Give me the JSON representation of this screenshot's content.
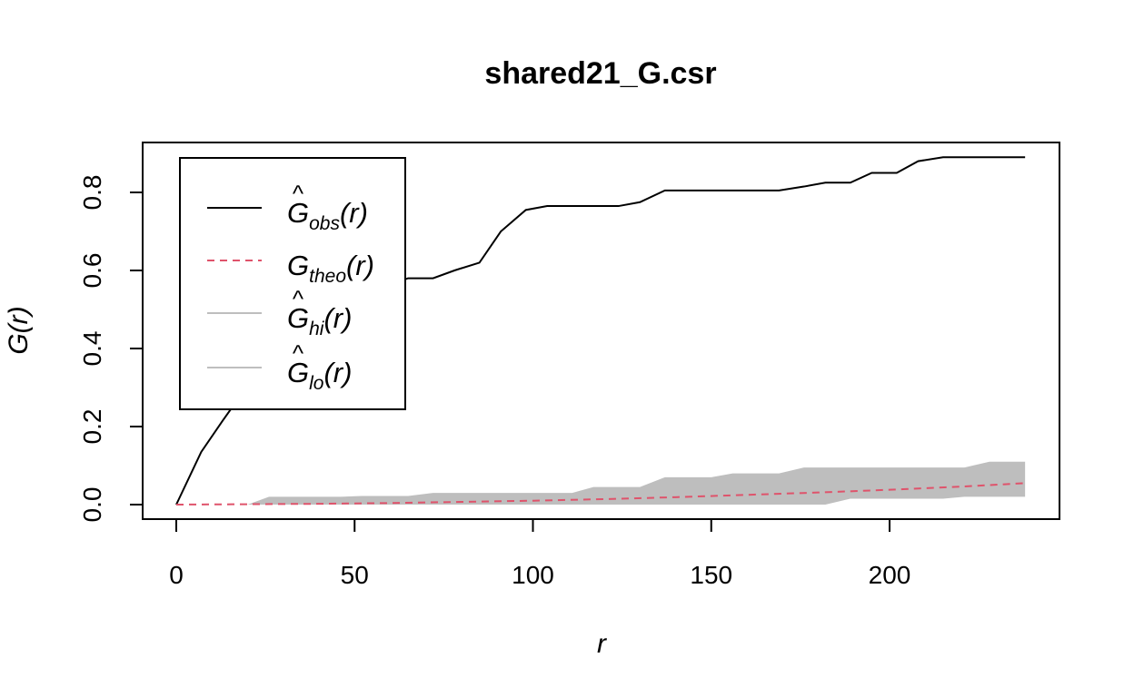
{
  "chart_data": {
    "type": "line",
    "title": "shared21_G.csr",
    "xlabel": "r",
    "ylabel": "G(r)",
    "xlim": [
      0,
      240
    ],
    "ylim": [
      0,
      0.9
    ],
    "x_ticks": [
      0,
      50,
      100,
      150,
      200
    ],
    "y_ticks": [
      0.0,
      0.2,
      0.4,
      0.6,
      0.8
    ],
    "x_tick_labels": [
      "0",
      "50",
      "100",
      "150",
      "200"
    ],
    "y_tick_labels": [
      "0.0",
      "0.2",
      "0.4",
      "0.6",
      "0.8"
    ],
    "grid": false,
    "legend_position": "top-left",
    "legend": [
      {
        "base": "G",
        "hat": true,
        "sub": "obs",
        "arg": "(r)",
        "style": "solid",
        "color": "#000000"
      },
      {
        "base": "G",
        "hat": false,
        "sub": "theo",
        "arg": "(r)",
        "style": "dashed",
        "color": "#DF536B"
      },
      {
        "base": "G",
        "hat": true,
        "sub": "hi",
        "arg": "(r)",
        "style": "solid",
        "color": "#BEBEBE"
      },
      {
        "base": "G",
        "hat": true,
        "sub": "lo",
        "arg": "(r)",
        "style": "solid",
        "color": "#BEBEBE"
      }
    ],
    "series": [
      {
        "key": "obs",
        "color": "#000000",
        "dash": "none",
        "x": [
          0,
          7,
          13,
          20,
          26,
          33,
          39,
          46,
          52,
          59,
          65,
          72,
          78,
          85,
          91,
          98,
          104,
          111,
          117,
          124,
          130,
          137,
          143,
          150,
          156,
          163,
          169,
          176,
          182,
          189,
          195,
          202,
          208,
          215,
          221,
          228,
          238
        ],
        "y": [
          0,
          0.135,
          0.215,
          0.305,
          0.345,
          0.385,
          0.425,
          0.495,
          0.515,
          0.56,
          0.58,
          0.58,
          0.6,
          0.62,
          0.7,
          0.755,
          0.765,
          0.765,
          0.765,
          0.765,
          0.775,
          0.805,
          0.805,
          0.805,
          0.805,
          0.805,
          0.805,
          0.815,
          0.825,
          0.825,
          0.85,
          0.85,
          0.88,
          0.89,
          0.89,
          0.89,
          0.89
        ]
      },
      {
        "key": "theo",
        "color": "#DF536B",
        "dash": "8,6",
        "x": [
          0,
          20,
          40,
          60,
          80,
          100,
          120,
          140,
          160,
          180,
          200,
          220,
          238
        ],
        "y": [
          0,
          0.001,
          0.002,
          0.004,
          0.007,
          0.01,
          0.014,
          0.019,
          0.025,
          0.031,
          0.038,
          0.046,
          0.055
        ]
      }
    ],
    "envelope": {
      "color": "#BEBEBE",
      "x": [
        0,
        20,
        26,
        33,
        46,
        52,
        59,
        65,
        72,
        78,
        85,
        91,
        98,
        104,
        111,
        117,
        124,
        130,
        137,
        143,
        150,
        156,
        163,
        169,
        176,
        182,
        189,
        195,
        202,
        208,
        215,
        221,
        228,
        238
      ],
      "hi": [
        0,
        0,
        0.02,
        0.02,
        0.02,
        0.022,
        0.022,
        0.022,
        0.03,
        0.03,
        0.03,
        0.03,
        0.03,
        0.03,
        0.03,
        0.045,
        0.045,
        0.045,
        0.07,
        0.07,
        0.07,
        0.08,
        0.08,
        0.08,
        0.095,
        0.095,
        0.095,
        0.095,
        0.095,
        0.095,
        0.095,
        0.095,
        0.11,
        0.11
      ],
      "lo": [
        0,
        0,
        0,
        0,
        0,
        0,
        0,
        0,
        0,
        0,
        0,
        0,
        0,
        0,
        0,
        0,
        0,
        0,
        0,
        0,
        0,
        0,
        0,
        0,
        0,
        0,
        0.015,
        0.015,
        0.015,
        0.015,
        0.015,
        0.02,
        0.02,
        0.02
      ]
    }
  }
}
